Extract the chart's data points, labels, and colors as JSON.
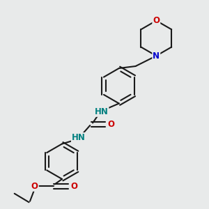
{
  "bg_color": "#e8eaea",
  "bond_color": "#1a1a1a",
  "N_color": "#0000cc",
  "O_color": "#cc0000",
  "NH_color": "#008080",
  "lw": 1.5,
  "figsize": [
    3.0,
    3.0
  ],
  "dpi": 100,
  "xlim": [
    0,
    10
  ],
  "ylim": [
    0,
    10
  ]
}
